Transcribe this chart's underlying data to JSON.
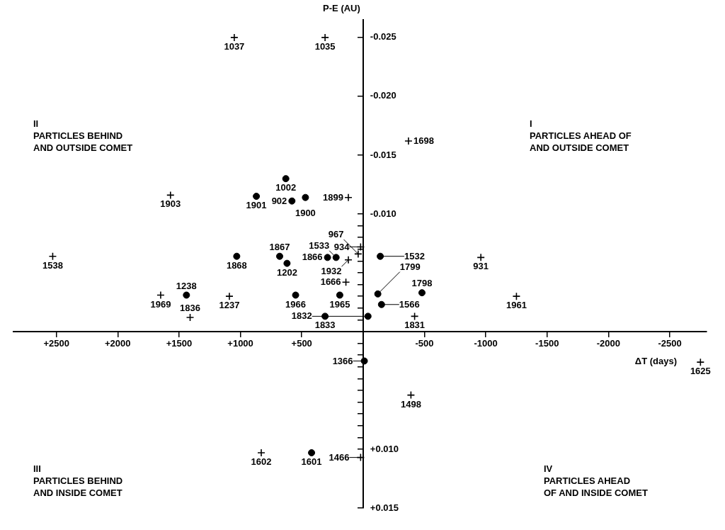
{
  "chart_data": {
    "type": "scatter",
    "xlabel": "ΔT (days)",
    "ylabel": "P-E (AU)",
    "xlim": [
      2850,
      -2800
    ],
    "ylim": [
      0.015,
      -0.0265
    ],
    "xticks": [
      {
        "value": 2500,
        "label": "+2500"
      },
      {
        "value": 2000,
        "label": "+2000"
      },
      {
        "value": 1500,
        "label": "+1500"
      },
      {
        "value": 1000,
        "label": "+1000"
      },
      {
        "value": 500,
        "label": "+500"
      },
      {
        "value": 0,
        "label": null
      },
      -500,
      -1000,
      -1500,
      -2000,
      -2500
    ],
    "yticks": [
      -0.025,
      {
        "value": -0.02,
        "label": "-0.020"
      },
      -0.015,
      {
        "value": -0.01,
        "label": "-0.010"
      },
      {
        "value": -0.009,
        "label": null
      },
      {
        "value": -0.008,
        "label": null
      },
      {
        "value": -0.007,
        "label": null
      },
      {
        "value": -0.006,
        "label": null
      },
      {
        "value": -0.005,
        "label": null
      },
      {
        "value": -0.004,
        "label": null
      },
      {
        "value": -0.003,
        "label": null
      },
      {
        "value": -0.002,
        "label": null
      },
      {
        "value": -0.001,
        "label": null
      },
      {
        "value": 0,
        "label": null
      },
      {
        "value": 0.001,
        "label": null
      },
      {
        "value": 0.002,
        "label": null
      },
      {
        "value": 0.003,
        "label": null
      },
      {
        "value": 0.004,
        "label": null
      },
      {
        "value": 0.005,
        "label": null
      },
      {
        "value": 0.006,
        "label": null
      },
      {
        "value": 0.007,
        "label": null
      },
      {
        "value": 0.008,
        "label": null
      },
      {
        "value": 0.009,
        "label": null
      },
      {
        "value": 0.01,
        "label": "+0.010"
      },
      {
        "value": 0.015,
        "label": "+0.015"
      }
    ],
    "grid": false,
    "legend": false,
    "series": [
      {
        "type": "scatter",
        "marker": "cross",
        "color": "#000000",
        "x": [
          1050,
          310,
          -370,
          1570,
          120,
          2530,
          1650,
          1090,
          1410,
          140,
          -960,
          -1250,
          -420,
          -2750,
          -390,
          830,
          20,
          120,
          20,
          40
        ],
        "values": [
          -0.025,
          -0.025,
          -0.0162,
          -0.0116,
          -0.0114,
          -0.0064,
          -0.0031,
          -0.003,
          -0.0012,
          -0.0042,
          -0.0063,
          -0.003,
          -0.0013,
          0.0026,
          0.0054,
          0.0103,
          0.0107,
          -0.0061,
          -0.0072,
          -0.0066
        ]
      },
      {
        "type": "scatter",
        "marker": "circle",
        "color": "#000000",
        "x": [
          630,
          470,
          870,
          580,
          680,
          1030,
          620,
          1440,
          550,
          190,
          310,
          -140,
          -120,
          -150,
          -480,
          -40,
          -10,
          420,
          220,
          290
        ],
        "values": [
          -0.013,
          -0.0114,
          -0.0115,
          -0.0111,
          -0.0064,
          -0.0064,
          -0.0058,
          -0.0031,
          -0.0031,
          -0.0031,
          -0.0013,
          -0.0064,
          -0.0032,
          -0.0023,
          -0.0033,
          -0.0013,
          0.0025,
          0.0103,
          -0.0063,
          -0.0063
        ]
      }
    ],
    "annotations": [
      "II\nPARTICLES BEHIND\nAND OUTSIDE COMET",
      "I\nPARTICLES AHEAD OF\nAND OUTSIDE COMET",
      "III\nPARTICLES BEHIND\nAND INSIDE COMET",
      "IV\nPARTICLES AHEAD\nOF AND INSIDE COMET",
      {
        "text": "1037",
        "x": 1050,
        "y": -0.025
      },
      {
        "text": "1035",
        "x": 310,
        "y": -0.025
      },
      {
        "text": "1698",
        "x": -370,
        "y": -0.0162
      },
      {
        "text": "1903",
        "x": 1570,
        "y": -0.0116
      },
      {
        "text": "1899",
        "x": 120,
        "y": -0.0114
      },
      {
        "text": "1538",
        "x": 2530,
        "y": -0.0064
      },
      {
        "text": "1969",
        "x": 1650,
        "y": -0.0031
      },
      {
        "text": "1237",
        "x": 1090,
        "y": -0.003
      },
      {
        "text": "1836",
        "x": 1410,
        "y": -0.0012
      },
      {
        "text": "1666",
        "x": 140,
        "y": -0.0042
      },
      {
        "text": "931",
        "x": -960,
        "y": -0.0063
      },
      {
        "text": "1961",
        "x": -1250,
        "y": -0.003
      },
      {
        "text": "1831",
        "x": -420,
        "y": -0.0013
      },
      {
        "text": "1625",
        "x": -2750,
        "y": 0.0026
      },
      {
        "text": "1498",
        "x": -390,
        "y": 0.0054
      },
      {
        "text": "1602",
        "x": 830,
        "y": 0.0103
      },
      {
        "text": "1466",
        "x": 20,
        "y": 0.0107
      },
      {
        "text": "1932",
        "x": 120,
        "y": -0.0061
      },
      {
        "text": "934",
        "x": 20,
        "y": -0.0072
      },
      {
        "text": "967",
        "x": 40,
        "y": -0.0066
      },
      {
        "text": "1002",
        "x": 630,
        "y": -0.013
      },
      {
        "text": "1900",
        "x": 470,
        "y": -0.0114
      },
      {
        "text": "1901",
        "x": 870,
        "y": -0.0115
      },
      {
        "text": "902",
        "x": 580,
        "y": -0.0111
      },
      {
        "text": "1867",
        "x": 680,
        "y": -0.0064
      },
      {
        "text": "1868",
        "x": 1030,
        "y": -0.0064
      },
      {
        "text": "1202",
        "x": 620,
        "y": -0.0058
      },
      {
        "text": "1238",
        "x": 1440,
        "y": -0.0031
      },
      {
        "text": "1966",
        "x": 550,
        "y": -0.0031
      },
      {
        "text": "1965",
        "x": 190,
        "y": -0.0031
      },
      {
        "text": "1833",
        "x": 310,
        "y": -0.0013
      },
      {
        "text": "1532",
        "x": -140,
        "y": -0.0064
      },
      {
        "text": "1799",
        "x": -120,
        "y": -0.0032
      },
      {
        "text": "1566",
        "x": -150,
        "y": -0.0023
      },
      {
        "text": "1798",
        "x": -480,
        "y": -0.0033
      },
      {
        "text": "1832",
        "x": -40,
        "y": -0.0013
      },
      {
        "text": "1366",
        "x": -10,
        "y": 0.0025
      },
      {
        "text": "1601",
        "x": 420,
        "y": 0.0103
      },
      {
        "text": "1533",
        "x": 220,
        "y": -0.0063
      },
      {
        "text": "1866",
        "x": 290,
        "y": -0.0063
      }
    ]
  }
}
